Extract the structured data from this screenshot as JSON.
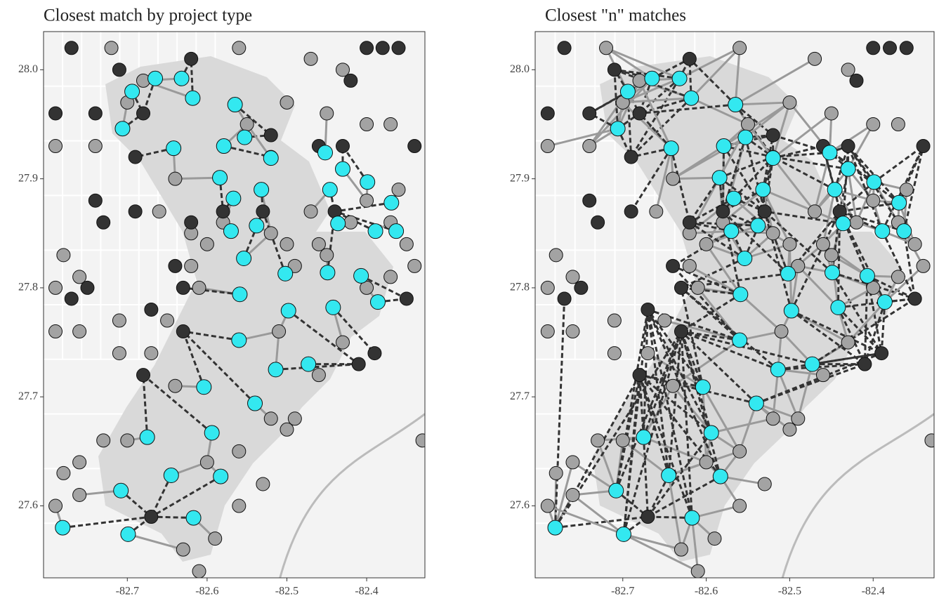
{
  "chart_data": [
    {
      "type": "scatter",
      "title": "Closest match by project type",
      "links": 1,
      "xlim": [
        -82.805,
        -82.327
      ],
      "ylim": [
        27.534,
        28.035
      ],
      "xticks": [
        -82.7,
        -82.6,
        -82.5,
        -82.4
      ],
      "yticks": [
        27.6,
        27.7,
        27.8,
        27.9,
        {
          "value": 28,
          "label": "28.0"
        }
      ],
      "series": [
        {
          "color": "#a3a3a3",
          "x": [
            -82.72,
            -82.68,
            -82.7,
            -82.74,
            -82.79,
            -82.64,
            -82.66,
            -82.62,
            -82.6,
            -82.58,
            -82.52,
            -82.5,
            -82.49,
            -82.46,
            -82.45,
            -82.42,
            -82.4,
            -82.37,
            -82.35,
            -82.37,
            -82.4,
            -82.43,
            -82.46,
            -82.51,
            -82.49,
            -82.5,
            -82.52,
            -82.6,
            -82.56,
            -82.53,
            -82.56,
            -82.59,
            -82.63,
            -82.61,
            -82.7,
            -82.73,
            -82.76,
            -82.78,
            -82.76,
            -82.79,
            -82.71,
            -82.67,
            -82.64,
            -82.65,
            -82.71,
            -82.76,
            -82.79,
            -82.78,
            -82.79,
            -82.76,
            -82.61,
            -82.62,
            -82.47,
            -82.43,
            -82.45,
            -82.4,
            -82.37,
            -82.36,
            -82.34,
            -82.56,
            -82.55,
            -82.5,
            -82.47,
            -82.33
          ],
          "y": [
            28.02,
            27.99,
            27.97,
            27.93,
            27.93,
            27.9,
            27.87,
            27.85,
            27.84,
            27.86,
            27.85,
            27.84,
            27.82,
            27.84,
            27.83,
            27.86,
            27.88,
            27.86,
            27.84,
            27.81,
            27.8,
            27.75,
            27.72,
            27.76,
            27.68,
            27.67,
            27.68,
            27.64,
            27.65,
            27.62,
            27.6,
            27.57,
            27.56,
            27.54,
            27.66,
            27.66,
            27.64,
            27.63,
            27.61,
            27.6,
            27.74,
            27.74,
            27.71,
            27.77,
            27.77,
            27.76,
            27.8,
            27.83,
            27.76,
            27.81,
            27.8,
            27.82,
            28.01,
            28.0,
            27.96,
            27.95,
            27.95,
            27.89,
            27.82,
            28.02,
            27.95,
            27.97,
            27.87,
            27.66
          ]
        },
        {
          "color": "#333333",
          "x": [
            -82.77,
            -82.71,
            -82.68,
            -82.74,
            -82.79,
            -82.69,
            -82.62,
            -82.4,
            -82.38,
            -82.36,
            -82.42,
            -82.46,
            -82.43,
            -82.52,
            -82.52,
            -82.44,
            -82.34,
            -82.69,
            -82.62,
            -82.64,
            -82.58,
            -82.53,
            -82.63,
            -82.67,
            -82.63,
            -82.75,
            -82.77,
            -82.68,
            -82.67,
            -82.35,
            -82.39,
            -82.41,
            -82.74,
            -82.73
          ],
          "y": [
            28.02,
            28.0,
            27.96,
            27.96,
            27.96,
            27.92,
            28.01,
            28.02,
            28.02,
            28.02,
            27.99,
            27.93,
            27.93,
            27.92,
            27.94,
            27.87,
            27.93,
            27.87,
            27.86,
            27.82,
            27.87,
            27.87,
            27.8,
            27.78,
            27.76,
            27.8,
            27.79,
            27.72,
            27.59,
            27.79,
            27.74,
            27.73,
            27.88,
            27.86
          ]
        },
        {
          "color": "#33e8f0",
          "x": [
            -82.694,
            -82.665,
            -82.632,
            -82.618,
            -82.706,
            -82.642,
            -82.565,
            -82.579,
            -82.553,
            -82.52,
            -82.584,
            -82.567,
            -82.532,
            -82.452,
            -82.43,
            -82.446,
            -82.399,
            -82.369,
            -82.57,
            -82.538,
            -82.554,
            -82.502,
            -82.436,
            -82.449,
            -82.407,
            -82.386,
            -82.498,
            -82.442,
            -82.559,
            -82.56,
            -82.514,
            -82.473,
            -82.604,
            -82.54,
            -82.594,
            -82.675,
            -82.645,
            -82.583,
            -82.708,
            -82.781,
            -82.699,
            -82.617,
            -82.363,
            -82.389
          ],
          "y": [
            27.98,
            27.992,
            27.992,
            27.974,
            27.946,
            27.928,
            27.968,
            27.93,
            27.938,
            27.919,
            27.901,
            27.882,
            27.89,
            27.924,
            27.909,
            27.89,
            27.897,
            27.878,
            27.852,
            27.857,
            27.827,
            27.813,
            27.859,
            27.814,
            27.811,
            27.787,
            27.779,
            27.782,
            27.794,
            27.752,
            27.725,
            27.73,
            27.709,
            27.694,
            27.667,
            27.663,
            27.628,
            27.627,
            27.614,
            27.58,
            27.574,
            27.589,
            27.852,
            27.852
          ]
        }
      ]
    },
    {
      "type": "scatter",
      "title": "Closest \"n\" matches",
      "links": 4,
      "xlim": [
        -82.805,
        -82.327
      ],
      "ylim": [
        27.534,
        28.035
      ],
      "xticks": [
        -82.7,
        -82.6,
        -82.5,
        -82.4
      ],
      "yticks": [
        27.6,
        27.7,
        27.8,
        27.9,
        {
          "value": 28,
          "label": "28.0"
        }
      ],
      "series": [
        {
          "color": "#a3a3a3",
          "x": [
            -82.72,
            -82.68,
            -82.7,
            -82.74,
            -82.79,
            -82.64,
            -82.66,
            -82.62,
            -82.6,
            -82.58,
            -82.52,
            -82.5,
            -82.49,
            -82.46,
            -82.45,
            -82.42,
            -82.4,
            -82.37,
            -82.35,
            -82.37,
            -82.4,
            -82.43,
            -82.46,
            -82.51,
            -82.49,
            -82.5,
            -82.52,
            -82.6,
            -82.56,
            -82.53,
            -82.56,
            -82.59,
            -82.63,
            -82.61,
            -82.7,
            -82.73,
            -82.76,
            -82.78,
            -82.76,
            -82.79,
            -82.71,
            -82.67,
            -82.64,
            -82.65,
            -82.71,
            -82.76,
            -82.79,
            -82.78,
            -82.79,
            -82.76,
            -82.61,
            -82.62,
            -82.47,
            -82.43,
            -82.45,
            -82.4,
            -82.37,
            -82.36,
            -82.34,
            -82.56,
            -82.55,
            -82.5,
            -82.47,
            -82.33
          ],
          "y": [
            28.02,
            27.99,
            27.97,
            27.93,
            27.93,
            27.9,
            27.87,
            27.85,
            27.84,
            27.86,
            27.85,
            27.84,
            27.82,
            27.84,
            27.83,
            27.86,
            27.88,
            27.86,
            27.84,
            27.81,
            27.8,
            27.75,
            27.72,
            27.76,
            27.68,
            27.67,
            27.68,
            27.64,
            27.65,
            27.62,
            27.6,
            27.57,
            27.56,
            27.54,
            27.66,
            27.66,
            27.64,
            27.63,
            27.61,
            27.6,
            27.74,
            27.74,
            27.71,
            27.77,
            27.77,
            27.76,
            27.8,
            27.83,
            27.76,
            27.81,
            27.8,
            27.82,
            28.01,
            28.0,
            27.96,
            27.95,
            27.95,
            27.89,
            27.82,
            28.02,
            27.95,
            27.97,
            27.87,
            27.66
          ]
        },
        {
          "color": "#333333",
          "x": [
            -82.77,
            -82.71,
            -82.68,
            -82.74,
            -82.79,
            -82.69,
            -82.62,
            -82.4,
            -82.38,
            -82.36,
            -82.42,
            -82.46,
            -82.43,
            -82.52,
            -82.52,
            -82.44,
            -82.34,
            -82.69,
            -82.62,
            -82.64,
            -82.58,
            -82.53,
            -82.63,
            -82.67,
            -82.63,
            -82.75,
            -82.77,
            -82.68,
            -82.67,
            -82.35,
            -82.39,
            -82.41,
            -82.74,
            -82.73
          ],
          "y": [
            28.02,
            28.0,
            27.96,
            27.96,
            27.96,
            27.92,
            28.01,
            28.02,
            28.02,
            28.02,
            27.99,
            27.93,
            27.93,
            27.92,
            27.94,
            27.87,
            27.93,
            27.87,
            27.86,
            27.82,
            27.87,
            27.87,
            27.8,
            27.78,
            27.76,
            27.8,
            27.79,
            27.72,
            27.59,
            27.79,
            27.74,
            27.73,
            27.88,
            27.86
          ]
        },
        {
          "color": "#33e8f0",
          "x": [
            -82.694,
            -82.665,
            -82.632,
            -82.618,
            -82.706,
            -82.642,
            -82.565,
            -82.579,
            -82.553,
            -82.52,
            -82.584,
            -82.567,
            -82.532,
            -82.452,
            -82.43,
            -82.446,
            -82.399,
            -82.369,
            -82.57,
            -82.538,
            -82.554,
            -82.502,
            -82.436,
            -82.449,
            -82.407,
            -82.386,
            -82.498,
            -82.442,
            -82.559,
            -82.56,
            -82.514,
            -82.473,
            -82.604,
            -82.54,
            -82.594,
            -82.675,
            -82.645,
            -82.583,
            -82.708,
            -82.781,
            -82.699,
            -82.617,
            -82.363,
            -82.389
          ],
          "y": [
            27.98,
            27.992,
            27.992,
            27.974,
            27.946,
            27.928,
            27.968,
            27.93,
            27.938,
            27.919,
            27.901,
            27.882,
            27.89,
            27.924,
            27.909,
            27.89,
            27.897,
            27.878,
            27.852,
            27.857,
            27.827,
            27.813,
            27.859,
            27.814,
            27.811,
            27.787,
            27.779,
            27.782,
            27.794,
            27.752,
            27.725,
            27.73,
            27.709,
            27.694,
            27.667,
            27.663,
            27.628,
            27.627,
            27.614,
            27.58,
            27.574,
            27.589,
            27.852,
            27.852
          ]
        }
      ]
    }
  ]
}
